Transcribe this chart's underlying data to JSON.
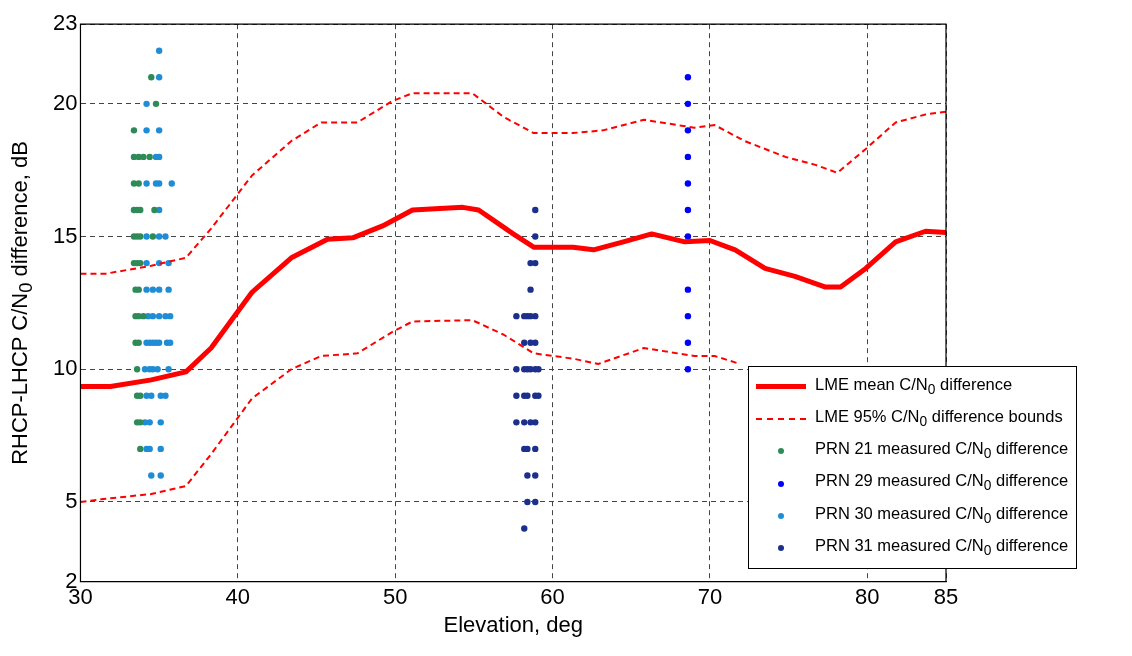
{
  "chart_data": {
    "type": "line",
    "xlabel": "Elevation, deg",
    "ylabel": "RHCP-LHCP C/N$_{0}$ difference, dB",
    "xlim": [
      30,
      85
    ],
    "xticks": [
      30,
      40,
      50,
      60,
      70,
      80,
      85
    ],
    "ylim": [
      2,
      23
    ],
    "yticks": [
      2,
      5,
      10,
      15,
      20,
      23
    ],
    "grid": true,
    "legend": "bottom right",
    "series": [
      {
        "name": "LME mean C/N$_{0}$ difference",
        "type": "line",
        "color": "#ff0000",
        "line_style": "solid",
        "marker": "none",
        "x": [
          30,
          31.9,
          34.5,
          36.7,
          38.3,
          40.9,
          43.4,
          45.7,
          47.3,
          49.2,
          51.1,
          54.3,
          55.3,
          57.5,
          58.8,
          61.3,
          62.6,
          64.5,
          66.3,
          68.4,
          70.0,
          71.6,
          73.5,
          75.4,
          77.3,
          78.3,
          79.9,
          81.8,
          83.7,
          85
        ],
        "values": [
          9.35,
          9.35,
          9.6,
          9.9,
          10.8,
          12.9,
          14.2,
          14.9,
          14.95,
          15.4,
          16.0,
          16.1,
          16.0,
          15.1,
          14.6,
          14.6,
          14.5,
          14.8,
          15.1,
          14.8,
          14.85,
          14.5,
          13.8,
          13.5,
          13.1,
          13.1,
          13.8,
          14.8,
          15.2,
          15.15
        ]
      },
      {
        "name": "LME 95% C/N$_{0}$ difference bounds",
        "type": "line",
        "color": "#ff0000",
        "line_style": "dashed",
        "marker": "none",
        "x": [
          30,
          31.6,
          34.5,
          36.7,
          38.3,
          40.9,
          43.4,
          45.3,
          47.6,
          49.8,
          51.1,
          54.9,
          56.9,
          58.8,
          61.3,
          63.2,
          65.8,
          69.0,
          70.3,
          72.2,
          74.8,
          76.7,
          78.1,
          79.9,
          81.8,
          83.7,
          85
        ],
        "values": [
          13.6,
          13.6,
          13.9,
          14.2,
          15.3,
          17.3,
          18.6,
          19.3,
          19.3,
          20.1,
          20.4,
          20.4,
          19.5,
          18.9,
          18.9,
          19.0,
          19.4,
          19.1,
          19.2,
          18.6,
          18.0,
          17.7,
          17.4,
          18.3,
          19.3,
          19.6,
          19.7
        ]
      },
      {
        "type": "line",
        "color": "#ff0000",
        "line_style": "dashed",
        "marker": "none",
        "x": [
          30,
          31.3,
          34.5,
          36.7,
          38.3,
          40.9,
          43.4,
          45.3,
          47.6,
          49.8,
          51.1,
          54.9,
          56.9,
          58.8,
          61.3,
          62.9,
          65.8,
          69.0,
          70.3,
          71.9
        ],
        "values": [
          5.0,
          5.1,
          5.3,
          5.6,
          6.8,
          8.9,
          10.0,
          10.5,
          10.6,
          11.4,
          11.8,
          11.85,
          11.3,
          10.6,
          10.4,
          10.2,
          10.8,
          10.5,
          10.5,
          10.2
        ]
      },
      {
        "name": "PRN 21 measured C/N$_{0}$ difference",
        "type": "scatter",
        "color": "#2e8b57",
        "marker": "circle",
        "x": [
          34.5,
          34.8,
          33.4,
          33.4,
          33.7,
          34.0,
          34.4,
          33.4,
          33.7,
          33.4,
          33.6,
          33.8,
          34.7,
          33.4,
          33.6,
          33.8,
          34.6,
          33.4,
          33.6,
          33.8,
          33.5,
          33.7,
          33.5,
          33.7,
          34.0,
          33.5,
          33.7,
          33.6,
          33.6,
          33.8,
          33.6,
          33.8,
          33.8
        ],
        "values": [
          21,
          20,
          19,
          18,
          18,
          18,
          18,
          17,
          17,
          16,
          16,
          16,
          16,
          15,
          15,
          15,
          15,
          14,
          14,
          14,
          13,
          13,
          12,
          12,
          12,
          11,
          11,
          10,
          9,
          9,
          8,
          8,
          7
        ]
      },
      {
        "name": "PRN 29 measured C/N$_{0}$ difference",
        "type": "scatter",
        "color": "#0000ff",
        "marker": "circle",
        "x": [
          68.6,
          68.6,
          68.6,
          68.6,
          68.6,
          68.6,
          68.6,
          68.6,
          68.6,
          68.6,
          68.6
        ],
        "values": [
          21,
          20,
          19,
          18,
          17,
          16,
          15,
          13,
          12,
          11,
          10
        ]
      },
      {
        "name": "PRN 30 measured C/N$_{0}$ difference",
        "type": "scatter",
        "color": "#1f8dd6",
        "marker": "circle",
        "x": [
          35.0,
          35.0,
          34.2,
          34.2,
          35.0,
          34.8,
          35.0,
          34.2,
          34.8,
          35.0,
          35.8,
          35.0,
          34.2,
          35.0,
          35.4,
          34.2,
          35.0,
          35.6,
          34.2,
          34.6,
          35.0,
          35.6,
          34.3,
          34.6,
          35.0,
          35.4,
          35.7,
          34.2,
          34.4,
          34.6,
          34.8,
          35.0,
          35.5,
          35.7,
          34.1,
          34.4,
          34.6,
          34.9,
          35.6,
          34.2,
          34.5,
          35.1,
          35.4,
          34.1,
          34.4,
          35.1,
          34.2,
          34.4,
          35.1,
          34.5,
          35.1
        ],
        "values": [
          22,
          21,
          20,
          19,
          19,
          18,
          18,
          17,
          17,
          17,
          17,
          16,
          15,
          15,
          15,
          14,
          14,
          14,
          13,
          13,
          13,
          13,
          12,
          12,
          12,
          12,
          12,
          11,
          11,
          11,
          11,
          11,
          11,
          11,
          10,
          10,
          10,
          10,
          10,
          9,
          9,
          9,
          9,
          8,
          8,
          8,
          7,
          7,
          7,
          6,
          6
        ]
      },
      {
        "name": "PRN 31 measured C/N$_{0}$ difference",
        "type": "scatter",
        "color": "#1c2f8c",
        "marker": "circle",
        "x": [
          58.9,
          58.9,
          58.6,
          58.9,
          58.6,
          57.7,
          58.2,
          58.4,
          58.6,
          58.9,
          58.2,
          58.6,
          58.9,
          57.7,
          58.2,
          58.4,
          58.6,
          58.9,
          59.1,
          57.7,
          58.2,
          58.4,
          58.9,
          59.1,
          57.7,
          58.2,
          58.6,
          58.9,
          58.2,
          58.4,
          58.9,
          58.4,
          58.9,
          58.4,
          58.9,
          58.2
        ],
        "values": [
          16,
          15,
          14,
          14,
          13,
          12,
          12,
          12,
          12,
          12,
          11,
          11,
          11,
          10,
          10,
          10,
          10,
          10,
          10,
          9,
          9,
          9,
          9,
          9,
          8,
          8,
          8,
          8,
          7,
          7,
          7,
          6,
          6,
          5,
          5,
          4
        ]
      }
    ]
  }
}
